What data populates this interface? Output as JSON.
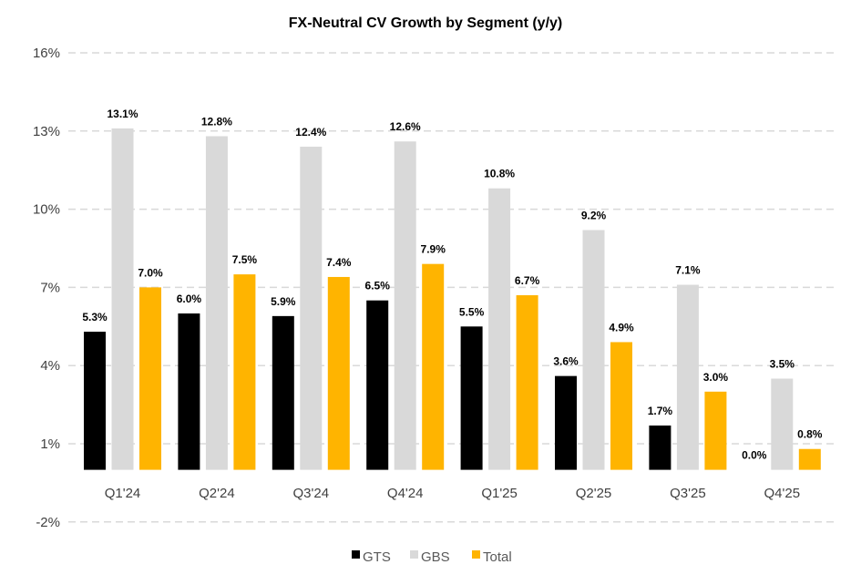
{
  "chart_data": {
    "type": "bar",
    "title": "FX-Neutral CV Growth by Segment (y/y)",
    "xlabel": "",
    "ylabel": "",
    "ylim": [
      -2,
      16
    ],
    "yticks": [
      -2,
      1,
      4,
      7,
      10,
      13,
      16
    ],
    "ytick_labels": [
      "-2%",
      "1%",
      "4%",
      "7%",
      "10%",
      "13%",
      "16%"
    ],
    "grid": true,
    "legend_position": "bottom",
    "categories": [
      "Q1'24",
      "Q2'24",
      "Q3'24",
      "Q4'24",
      "Q1'25",
      "Q2'25",
      "Q3'25",
      "Q4'25"
    ],
    "series": [
      {
        "name": "GTS",
        "color": "#000000",
        "values": [
          5.3,
          6.0,
          5.9,
          6.5,
          5.5,
          3.6,
          1.7,
          0.0
        ],
        "labels": [
          "5.3%",
          "6.0%",
          "5.9%",
          "6.5%",
          "5.5%",
          "3.6%",
          "1.7%",
          "0.0%"
        ]
      },
      {
        "name": "GBS",
        "color": "#d9d9d9",
        "values": [
          13.1,
          12.8,
          12.4,
          12.6,
          10.8,
          9.2,
          7.1,
          3.5
        ],
        "labels": [
          "13.1%",
          "12.8%",
          "12.4%",
          "12.6%",
          "10.8%",
          "9.2%",
          "7.1%",
          "3.5%"
        ]
      },
      {
        "name": "Total",
        "color": "#ffb400",
        "values": [
          7.0,
          7.5,
          7.4,
          7.9,
          6.7,
          4.9,
          3.0,
          0.8
        ],
        "labels": [
          "7.0%",
          "7.5%",
          "7.4%",
          "7.9%",
          "6.7%",
          "4.9%",
          "3.0%",
          "0.8%"
        ]
      }
    ]
  }
}
